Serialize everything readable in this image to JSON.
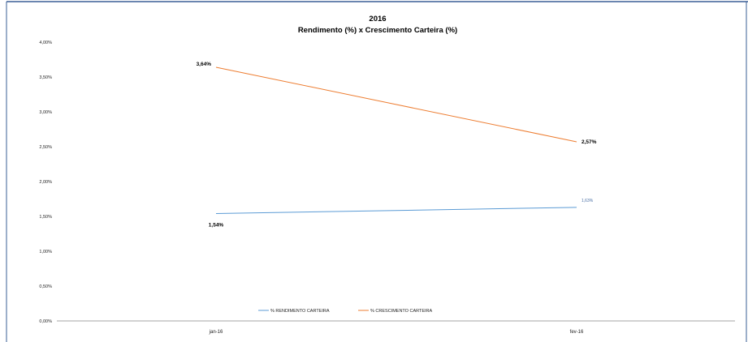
{
  "chart_data": {
    "type": "line",
    "title": "2016",
    "subtitle": "Rendimento (%)  x  Crescimento Carteira (%)",
    "categories": [
      "jan-16",
      "fev-16"
    ],
    "y_ticks": [
      "0,00%",
      "0,50%",
      "1,00%",
      "1,50%",
      "2,00%",
      "2,50%",
      "3,00%",
      "3,50%",
      "4,00%"
    ],
    "ylim": [
      0,
      4
    ],
    "grid": false,
    "legend_position": "bottom",
    "series": [
      {
        "name": "% RENDIMENTO CARTEIRA",
        "color": "#5b9bd5",
        "values": [
          1.54,
          1.63
        ],
        "labels": [
          "1,54%",
          "1,63%"
        ]
      },
      {
        "name": "% CRESCIMENTO CARTEIRA",
        "color": "#ed7d31",
        "values": [
          3.64,
          2.57
        ],
        "labels": [
          "3,64%",
          "2,57%"
        ]
      }
    ]
  }
}
